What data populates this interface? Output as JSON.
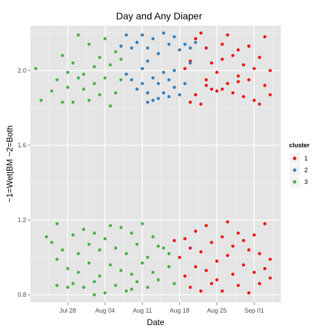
{
  "chart_data": {
    "type": "scatter",
    "title": "Day and Any Diaper",
    "xlabel": "Date",
    "ylabel": "~1=Wet|BM ~2=Both",
    "x_ticks": [
      "Jul 28",
      "Aug 04",
      "Aug 11",
      "Aug 18",
      "Aug 25",
      "Sep 01"
    ],
    "y_ticks": [
      "0.8",
      "1.2",
      "1.6",
      "2.0"
    ],
    "xlim": [
      "2014-07-21",
      "2014-09-06"
    ],
    "ylim": [
      0.76,
      2.24
    ],
    "grid": true,
    "legend": {
      "title": "cluster",
      "position": "right"
    },
    "series": [
      {
        "name": "1",
        "color": "#e41a1c",
        "points": [
          {
            "x": "2014-08-19",
            "y": 2.01
          },
          {
            "x": "2014-08-20",
            "y": 2.05
          },
          {
            "x": "2014-08-20",
            "y": 1.83
          },
          {
            "x": "2014-08-21",
            "y": 1.87
          },
          {
            "x": "2014-08-21",
            "y": 2.17
          },
          {
            "x": "2014-08-22",
            "y": 2.2
          },
          {
            "x": "2014-08-22",
            "y": 1.82
          },
          {
            "x": "2014-08-23",
            "y": 1.95
          },
          {
            "x": "2014-08-23",
            "y": 2.12
          },
          {
            "x": "2014-08-24",
            "y": 1.9
          },
          {
            "x": "2014-08-24",
            "y": 2.04
          },
          {
            "x": "2014-08-25",
            "y": 1.99
          },
          {
            "x": "2014-08-25",
            "y": 1.89
          },
          {
            "x": "2014-08-26",
            "y": 2.14
          },
          {
            "x": "2014-08-26",
            "y": 2.06
          },
          {
            "x": "2014-08-27",
            "y": 1.93
          },
          {
            "x": "2014-08-27",
            "y": 2.19
          },
          {
            "x": "2014-08-28",
            "y": 2.08
          },
          {
            "x": "2014-08-28",
            "y": 1.88
          },
          {
            "x": "2014-08-29",
            "y": 2.11
          },
          {
            "x": "2014-08-29",
            "y": 1.97
          },
          {
            "x": "2014-08-30",
            "y": 2.03
          },
          {
            "x": "2014-08-30",
            "y": 1.86
          },
          {
            "x": "2014-08-31",
            "y": 2.13
          },
          {
            "x": "2014-08-31",
            "y": 1.95
          },
          {
            "x": "2014-09-01",
            "y": 2.01
          },
          {
            "x": "2014-09-01",
            "y": 1.84
          },
          {
            "x": "2014-09-02",
            "y": 2.07
          },
          {
            "x": "2014-09-03",
            "y": 2.18
          },
          {
            "x": "2014-09-03",
            "y": 1.92
          },
          {
            "x": "2014-09-04",
            "y": 1.87
          },
          {
            "x": "2014-09-04",
            "y": 2.0
          },
          {
            "x": "2014-08-23",
            "y": 1.92
          },
          {
            "x": "2014-08-26",
            "y": 1.9
          },
          {
            "x": "2014-08-29",
            "y": 1.94
          },
          {
            "x": "2014-09-02",
            "y": 1.82
          },
          {
            "x": "2014-08-17",
            "y": 1.09
          },
          {
            "x": "2014-08-18",
            "y": 1.0
          },
          {
            "x": "2014-08-19",
            "y": 0.9
          },
          {
            "x": "2014-08-19",
            "y": 1.1
          },
          {
            "x": "2014-08-20",
            "y": 0.84
          },
          {
            "x": "2014-08-20",
            "y": 1.05
          },
          {
            "x": "2014-08-21",
            "y": 0.95
          },
          {
            "x": "2014-08-21",
            "y": 1.14
          },
          {
            "x": "2014-08-22",
            "y": 0.82
          },
          {
            "x": "2014-08-22",
            "y": 1.03
          },
          {
            "x": "2014-08-23",
            "y": 0.93
          },
          {
            "x": "2014-08-23",
            "y": 1.17
          },
          {
            "x": "2014-08-24",
            "y": 0.86
          },
          {
            "x": "2014-08-24",
            "y": 1.08
          },
          {
            "x": "2014-08-25",
            "y": 0.98
          },
          {
            "x": "2014-08-25",
            "y": 0.88
          },
          {
            "x": "2014-08-26",
            "y": 1.11
          },
          {
            "x": "2014-08-26",
            "y": 0.82
          },
          {
            "x": "2014-08-27",
            "y": 1.01
          },
          {
            "x": "2014-08-27",
            "y": 1.19
          },
          {
            "x": "2014-08-28",
            "y": 0.91
          },
          {
            "x": "2014-08-28",
            "y": 1.06
          },
          {
            "x": "2014-08-29",
            "y": 0.85
          },
          {
            "x": "2014-08-29",
            "y": 1.13
          },
          {
            "x": "2014-08-30",
            "y": 0.96
          },
          {
            "x": "2014-08-30",
            "y": 1.09
          },
          {
            "x": "2014-08-31",
            "y": 0.81
          },
          {
            "x": "2014-08-31",
            "y": 1.04
          },
          {
            "x": "2014-09-01",
            "y": 0.92
          },
          {
            "x": "2014-09-01",
            "y": 1.12
          },
          {
            "x": "2014-09-02",
            "y": 0.86
          },
          {
            "x": "2014-09-02",
            "y": 1.02
          },
          {
            "x": "2014-09-03",
            "y": 0.94
          },
          {
            "x": "2014-09-03",
            "y": 1.18
          },
          {
            "x": "2014-09-04",
            "y": 0.89
          },
          {
            "x": "2014-09-04",
            "y": 0.99
          }
        ]
      },
      {
        "name": "2",
        "color": "#377eb8",
        "points": [
          {
            "x": "2014-08-07",
            "y": 2.13
          },
          {
            "x": "2014-08-08",
            "y": 2.19
          },
          {
            "x": "2014-08-08",
            "y": 1.98
          },
          {
            "x": "2014-08-09",
            "y": 2.12
          },
          {
            "x": "2014-08-09",
            "y": 1.95
          },
          {
            "x": "2014-08-10",
            "y": 2.15
          },
          {
            "x": "2014-08-10",
            "y": 1.9
          },
          {
            "x": "2014-08-11",
            "y": 2.19
          },
          {
            "x": "2014-08-11",
            "y": 1.93
          },
          {
            "x": "2014-08-11",
            "y": 2.01
          },
          {
            "x": "2014-08-12",
            "y": 2.12
          },
          {
            "x": "2014-08-12",
            "y": 1.88
          },
          {
            "x": "2014-08-12",
            "y": 2.05
          },
          {
            "x": "2014-08-13",
            "y": 2.17
          },
          {
            "x": "2014-08-13",
            "y": 1.96
          },
          {
            "x": "2014-08-13",
            "y": 1.84
          },
          {
            "x": "2014-08-14",
            "y": 2.09
          },
          {
            "x": "2014-08-14",
            "y": 1.93
          },
          {
            "x": "2014-08-15",
            "y": 2.2
          },
          {
            "x": "2014-08-15",
            "y": 1.99
          },
          {
            "x": "2014-08-15",
            "y": 1.88
          },
          {
            "x": "2014-08-16",
            "y": 2.14
          },
          {
            "x": "2014-08-16",
            "y": 1.95
          },
          {
            "x": "2014-08-17",
            "y": 2.18
          },
          {
            "x": "2014-08-17",
            "y": 1.91
          },
          {
            "x": "2014-08-17",
            "y": 2.0
          },
          {
            "x": "2014-08-18",
            "y": 2.11
          },
          {
            "x": "2014-08-18",
            "y": 1.87
          },
          {
            "x": "2014-08-19",
            "y": 2.14
          },
          {
            "x": "2014-08-19",
            "y": 1.93
          },
          {
            "x": "2014-08-20",
            "y": 2.12
          },
          {
            "x": "2014-08-20",
            "y": 2.04
          },
          {
            "x": "2014-08-21",
            "y": 2.15
          },
          {
            "x": "2014-08-14",
            "y": 1.85
          },
          {
            "x": "2014-08-16",
            "y": 1.86
          },
          {
            "x": "2014-08-12",
            "y": 1.83
          }
        ]
      },
      {
        "name": "3",
        "color": "#4daf4a",
        "points": [
          {
            "x": "2014-07-22",
            "y": 2.01
          },
          {
            "x": "2014-07-23",
            "y": 1.84
          },
          {
            "x": "2014-07-25",
            "y": 1.89
          },
          {
            "x": "2014-07-26",
            "y": 1.95
          },
          {
            "x": "2014-07-27",
            "y": 2.08
          },
          {
            "x": "2014-07-27",
            "y": 1.83
          },
          {
            "x": "2014-07-28",
            "y": 1.99
          },
          {
            "x": "2014-07-28",
            "y": 1.91
          },
          {
            "x": "2014-07-29",
            "y": 2.04
          },
          {
            "x": "2014-07-29",
            "y": 1.83
          },
          {
            "x": "2014-07-30",
            "y": 1.96
          },
          {
            "x": "2014-07-30",
            "y": 2.19
          },
          {
            "x": "2014-07-31",
            "y": 1.9
          },
          {
            "x": "2014-07-31",
            "y": 1.98
          },
          {
            "x": "2014-08-01",
            "y": 2.14
          },
          {
            "x": "2014-08-01",
            "y": 1.84
          },
          {
            "x": "2014-08-02",
            "y": 2.02
          },
          {
            "x": "2014-08-02",
            "y": 1.93
          },
          {
            "x": "2014-08-03",
            "y": 2.07
          },
          {
            "x": "2014-08-03",
            "y": 1.87
          },
          {
            "x": "2014-08-04",
            "y": 2.17
          },
          {
            "x": "2014-08-04",
            "y": 1.96
          },
          {
            "x": "2014-08-05",
            "y": 1.81
          },
          {
            "x": "2014-08-05",
            "y": 2.03
          },
          {
            "x": "2014-08-06",
            "y": 2.1
          },
          {
            "x": "2014-08-06",
            "y": 1.88
          },
          {
            "x": "2014-08-07",
            "y": 1.95
          },
          {
            "x": "2014-08-07",
            "y": 2.06
          },
          {
            "x": "2014-07-24",
            "y": 1.11
          },
          {
            "x": "2014-07-25",
            "y": 1.08
          },
          {
            "x": "2014-07-26",
            "y": 1.18
          },
          {
            "x": "2014-07-26",
            "y": 0.99
          },
          {
            "x": "2014-07-27",
            "y": 1.04
          },
          {
            "x": "2014-07-28",
            "y": 0.94
          },
          {
            "x": "2014-07-28",
            "y": 0.84
          },
          {
            "x": "2014-07-29",
            "y": 1.12
          },
          {
            "x": "2014-07-29",
            "y": 0.86
          },
          {
            "x": "2014-07-30",
            "y": 1.02
          },
          {
            "x": "2014-07-30",
            "y": 0.92
          },
          {
            "x": "2014-07-31",
            "y": 1.15
          },
          {
            "x": "2014-07-31",
            "y": 0.84
          },
          {
            "x": "2014-08-01",
            "y": 1.07
          },
          {
            "x": "2014-08-01",
            "y": 0.97
          },
          {
            "x": "2014-08-02",
            "y": 0.87
          },
          {
            "x": "2014-08-02",
            "y": 1.13
          },
          {
            "x": "2014-08-03",
            "y": 0.9
          },
          {
            "x": "2014-08-03",
            "y": 1.04
          },
          {
            "x": "2014-08-04",
            "y": 0.81
          },
          {
            "x": "2014-08-04",
            "y": 1.1
          },
          {
            "x": "2014-08-05",
            "y": 0.96
          },
          {
            "x": "2014-08-05",
            "y": 1.17
          },
          {
            "x": "2014-08-06",
            "y": 0.85
          },
          {
            "x": "2014-08-06",
            "y": 1.05
          },
          {
            "x": "2014-08-07",
            "y": 0.93
          },
          {
            "x": "2014-08-07",
            "y": 1.16
          },
          {
            "x": "2014-08-08",
            "y": 0.82
          },
          {
            "x": "2014-08-08",
            "y": 1.02
          },
          {
            "x": "2014-08-09",
            "y": 0.91
          },
          {
            "x": "2014-08-09",
            "y": 1.13
          },
          {
            "x": "2014-08-10",
            "y": 0.87
          },
          {
            "x": "2014-08-10",
            "y": 1.07
          },
          {
            "x": "2014-08-11",
            "y": 0.97
          },
          {
            "x": "2014-08-11",
            "y": 1.18
          },
          {
            "x": "2014-08-12",
            "y": 0.84
          },
          {
            "x": "2014-08-12",
            "y": 1.0
          },
          {
            "x": "2014-08-13",
            "y": 0.92
          },
          {
            "x": "2014-08-13",
            "y": 1.11
          },
          {
            "x": "2014-08-14",
            "y": 0.88
          },
          {
            "x": "2014-08-15",
            "y": 1.05
          },
          {
            "x": "2014-08-16",
            "y": 0.95
          },
          {
            "x": "2014-08-17",
            "y": 0.86
          },
          {
            "x": "2014-07-26",
            "y": 0.85
          },
          {
            "x": "2014-08-02",
            "y": 0.8
          },
          {
            "x": "2014-08-09",
            "y": 0.83
          },
          {
            "x": "2014-08-14",
            "y": 1.06
          },
          {
            "x": "2014-08-16",
            "y": 1.02
          }
        ]
      }
    ]
  }
}
